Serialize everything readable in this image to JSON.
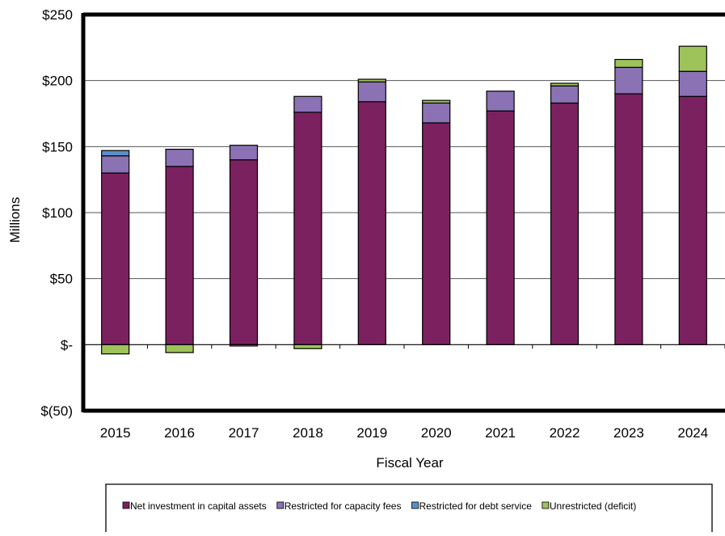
{
  "chart_data": {
    "type": "bar",
    "stacked": true,
    "title": "",
    "xlabel": "Fiscal Year",
    "ylabel": "Millions",
    "ylim": [
      -50,
      250
    ],
    "y_ticks": [
      250,
      200,
      150,
      100,
      50,
      0,
      -50
    ],
    "y_tick_labels": [
      "$250",
      "$200",
      "$150",
      "$100",
      "$50",
      "$-",
      "$(50)"
    ],
    "grid": true,
    "legend_position": "bottom",
    "categories": [
      "2015",
      "2016",
      "2017",
      "2018",
      "2019",
      "2020",
      "2021",
      "2022",
      "2023",
      "2024"
    ],
    "series": [
      {
        "name": "Net investment in capital assets",
        "color": "#7b2160",
        "values": [
          130,
          135,
          140,
          176,
          184,
          168,
          177,
          183,
          190,
          188
        ]
      },
      {
        "name": "Restricted for capacity fees",
        "color": "#8a72b5",
        "values": [
          13,
          13,
          11,
          12,
          15,
          15,
          15,
          13,
          20,
          19
        ]
      },
      {
        "name": "Restricted for debt service",
        "color": "#5b8fc9",
        "values": [
          4,
          0,
          0,
          0,
          0,
          0,
          0,
          0,
          0,
          0
        ]
      },
      {
        "name": "Unrestricted (deficit)",
        "color": "#9dc35a",
        "values": [
          -7,
          -6,
          -1,
          -3,
          2,
          2,
          0,
          2,
          6,
          19
        ]
      }
    ]
  }
}
